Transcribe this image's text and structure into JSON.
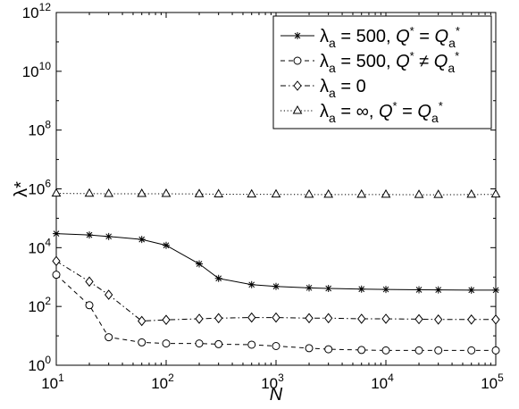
{
  "chart_data": {
    "type": "line",
    "xlabel": "N",
    "ylabel": "λ*",
    "xscale": "log",
    "yscale": "log",
    "xlim": [
      10,
      100000
    ],
    "ylim": [
      1,
      1000000000000
    ],
    "x_tick_base": "10",
    "x_tick_exponents": [
      "1",
      "2",
      "3",
      "4",
      "5"
    ],
    "y_tick_base": "10",
    "y_tick_exponents": [
      "0",
      "2",
      "4",
      "6",
      "8",
      "10",
      "12"
    ],
    "grid": false,
    "legend_position": "top-right",
    "legend": [
      {
        "main": "λ",
        "sub": "a",
        "rest": " = 500, ",
        "q": "Q",
        "qsup": "*",
        "op": " = ",
        "q2": "Q",
        "q2sub": "a",
        "q2sup": "*"
      },
      {
        "main": "λ",
        "sub": "a",
        "rest": " = 500,   ",
        "q": "Q",
        "qsup": "*",
        "op": " ≠ ",
        "q2": "Q",
        "q2sub": "a",
        "q2sup": "*"
      },
      {
        "main": "λ",
        "sub": "a",
        "rest": " = 0",
        "q": "",
        "qsup": "",
        "op": "",
        "q2": "",
        "q2sub": "",
        "q2sup": ""
      },
      {
        "main": "λ",
        "sub": "a",
        "rest": " = ∞,  ",
        "q": "Q",
        "qsup": "*",
        "op": " = ",
        "q2": "Q",
        "q2sub": "a",
        "q2sup": "*"
      }
    ],
    "series": [
      {
        "marker": "asterisk",
        "line_style": "solid",
        "x": [
          10,
          20,
          30,
          60,
          100,
          200,
          300,
          600,
          1000,
          2000,
          3000,
          6000,
          10000,
          20000,
          30000,
          60000,
          100000
        ],
        "y": [
          30000,
          27000,
          24000,
          19000,
          12000,
          2800,
          900,
          550,
          480,
          430,
          410,
          390,
          380,
          370,
          365,
          360,
          360
        ]
      },
      {
        "marker": "circle",
        "line_style": "dashed",
        "x": [
          10,
          20,
          30,
          60,
          100,
          200,
          300,
          600,
          1000,
          2000,
          3000,
          6000,
          10000,
          20000,
          30000,
          60000,
          100000
        ],
        "y": [
          1200,
          110,
          9,
          6,
          5.5,
          5.5,
          5.2,
          5,
          4.5,
          3.8,
          3.5,
          3.3,
          3.2,
          3.2,
          3.2,
          3.2,
          3.2
        ]
      },
      {
        "marker": "diamond",
        "line_style": "dashdot",
        "x": [
          10,
          20,
          30,
          60,
          100,
          200,
          300,
          600,
          1000,
          2000,
          3000,
          6000,
          10000,
          20000,
          30000,
          60000,
          100000
        ],
        "y": [
          3500,
          700,
          250,
          32,
          35,
          38,
          40,
          42,
          42,
          40,
          40,
          38,
          38,
          37,
          36,
          36,
          36
        ]
      },
      {
        "marker": "triangle",
        "line_style": "dotted",
        "x": [
          10,
          20,
          30,
          60,
          100,
          200,
          300,
          600,
          1000,
          2000,
          3000,
          6000,
          10000,
          20000,
          30000,
          60000,
          100000
        ],
        "y": [
          700000,
          690000,
          680000,
          680000,
          680000,
          670000,
          660000,
          650000,
          650000,
          640000,
          640000,
          640000,
          640000,
          630000,
          630000,
          640000,
          650000
        ]
      }
    ]
  }
}
